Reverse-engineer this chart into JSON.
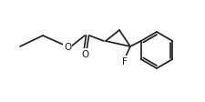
{
  "bg_color": "#ffffff",
  "line_color": "#1a1a1a",
  "line_width": 1.2,
  "font_size": 7.5,
  "atoms": {
    "O_label": "O",
    "F_label": "F",
    "carbonyl_O": "O"
  },
  "figsize": [
    2.25,
    1.13
  ],
  "dpi": 100
}
